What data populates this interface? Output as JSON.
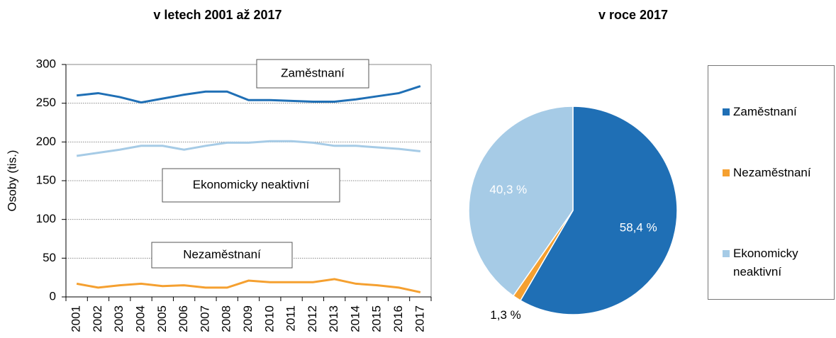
{
  "chart_data": [
    {
      "type": "line",
      "title": "v letech 2001 až 2017",
      "y_label": "Osoby (tis.)",
      "categories": [
        "2001",
        "2002",
        "2003",
        "2004",
        "2005",
        "2006",
        "2007",
        "2008",
        "2009",
        "2010",
        "2011",
        "2012",
        "2013",
        "2014",
        "2015",
        "2016",
        "2017"
      ],
      "series": [
        {
          "name": "Zaměstnaní",
          "color": "#1f6fb5",
          "values": [
            260,
            263,
            258,
            251,
            256,
            261,
            265,
            265,
            254,
            254,
            253,
            252,
            252,
            255,
            259,
            263,
            272
          ]
        },
        {
          "name": "Ekonomicky neaktivní",
          "color": "#a6cbe6",
          "values": [
            182,
            186,
            190,
            195,
            195,
            190,
            195,
            199,
            199,
            201,
            201,
            199,
            195,
            195,
            193,
            191,
            188
          ]
        },
        {
          "name": "Nezaměstnaní",
          "color": "#f5a030",
          "values": [
            17,
            12,
            15,
            17,
            14,
            15,
            12,
            12,
            21,
            19,
            19,
            19,
            23,
            17,
            15,
            12,
            6
          ]
        }
      ],
      "ylim": [
        0,
        300
      ],
      "yticks": [
        0,
        50,
        100,
        150,
        200,
        250,
        300
      ],
      "grid": true
    },
    {
      "type": "pie",
      "title": "v roce 2017",
      "categories": [
        "Zaměstnaní",
        "Nezaměstnaní",
        "Ekonomicky neaktivní"
      ],
      "values": [
        58.4,
        1.3,
        40.3
      ],
      "value_labels": [
        "58,4 %",
        "1,3 %",
        "40,3 %"
      ],
      "colors": [
        "#1f6fb5",
        "#f5a030",
        "#a6cbe6"
      ],
      "legend": "right"
    }
  ]
}
